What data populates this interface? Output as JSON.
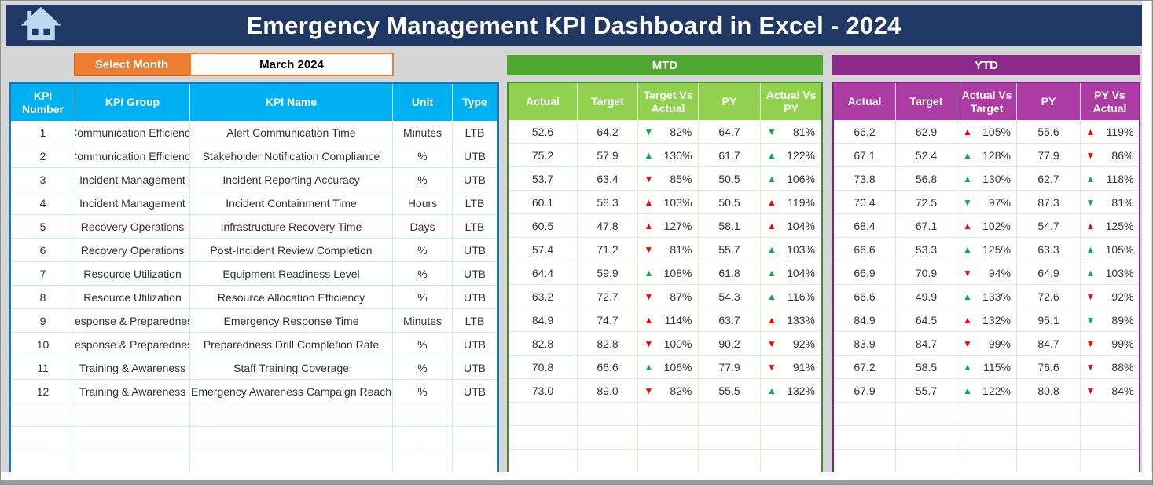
{
  "header": {
    "title": "Emergency Management KPI Dashboard in Excel - 2024"
  },
  "filter": {
    "button_label": "Select Month",
    "selected_month": "March 2024"
  },
  "colors": {
    "navy": "#1F3864",
    "accent_orange": "#ED7D31",
    "kpi_header_blue": "#00B0F0",
    "mtd_green": "#4EA72E",
    "mtd_header_green": "#92D050",
    "ytd_purple": "#8B2A8B",
    "ytd_header_purple": "#AC3BA4",
    "good_arrow": "#00B050",
    "bad_arrow": "#FF0000"
  },
  "kpi_table": {
    "headers": [
      "KPI Number",
      "KPI Group",
      "KPI Name",
      "Unit",
      "Type"
    ],
    "empty_row_count": 3,
    "rows": [
      {
        "number": "1",
        "group": "Communication Efficiency",
        "name": "Alert Communication Time",
        "unit": "Minutes",
        "type": "LTB"
      },
      {
        "number": "2",
        "group": "Communication Efficiency",
        "name": "Stakeholder Notification Compliance",
        "unit": "%",
        "type": "UTB"
      },
      {
        "number": "3",
        "group": "Incident Management",
        "name": "Incident Reporting Accuracy",
        "unit": "%",
        "type": "UTB"
      },
      {
        "number": "4",
        "group": "Incident Management",
        "name": "Incident Containment Time",
        "unit": "Hours",
        "type": "LTB"
      },
      {
        "number": "5",
        "group": "Recovery Operations",
        "name": "Infrastructure Recovery Time",
        "unit": "Days",
        "type": "LTB"
      },
      {
        "number": "6",
        "group": "Recovery Operations",
        "name": "Post-Incident Review Completion",
        "unit": "%",
        "type": "UTB"
      },
      {
        "number": "7",
        "group": "Resource Utilization",
        "name": "Equipment Readiness Level",
        "unit": "%",
        "type": "UTB"
      },
      {
        "number": "8",
        "group": "Resource Utilization",
        "name": "Resource Allocation Efficiency",
        "unit": "%",
        "type": "UTB"
      },
      {
        "number": "9",
        "group": "Response & Preparedness",
        "name": "Emergency Response Time",
        "unit": "Minutes",
        "type": "LTB"
      },
      {
        "number": "10",
        "group": "Response & Preparedness",
        "name": "Preparedness Drill Completion Rate",
        "unit": "%",
        "type": "UTB"
      },
      {
        "number": "11",
        "group": "Training & Awareness",
        "name": "Staff Training Coverage",
        "unit": "%",
        "type": "UTB"
      },
      {
        "number": "12",
        "group": "Training & Awareness",
        "name": "Emergency Awareness Campaign Reach",
        "unit": "%",
        "type": "UTB"
      }
    ]
  },
  "mtd": {
    "title": "MTD",
    "headers": [
      "Actual",
      "Target",
      "Target Vs Actual",
      "PY",
      "Actual Vs PY"
    ],
    "empty_row_count": 3,
    "rows": [
      {
        "actual": "52.6",
        "target": "64.2",
        "target_vs_actual": {
          "direction": "down",
          "color": "green",
          "value": "82%"
        },
        "py": "64.7",
        "actual_vs_py": {
          "direction": "down",
          "color": "green",
          "value": "81%"
        }
      },
      {
        "actual": "75.2",
        "target": "57.9",
        "target_vs_actual": {
          "direction": "up",
          "color": "green",
          "value": "130%"
        },
        "py": "61.7",
        "actual_vs_py": {
          "direction": "up",
          "color": "green",
          "value": "122%"
        }
      },
      {
        "actual": "53.7",
        "target": "63.4",
        "target_vs_actual": {
          "direction": "down",
          "color": "red",
          "value": "85%"
        },
        "py": "50.5",
        "actual_vs_py": {
          "direction": "up",
          "color": "green",
          "value": "106%"
        }
      },
      {
        "actual": "60.1",
        "target": "58.3",
        "target_vs_actual": {
          "direction": "up",
          "color": "red",
          "value": "103%"
        },
        "py": "50.5",
        "actual_vs_py": {
          "direction": "up",
          "color": "red",
          "value": "119%"
        }
      },
      {
        "actual": "60.5",
        "target": "47.8",
        "target_vs_actual": {
          "direction": "up",
          "color": "red",
          "value": "127%"
        },
        "py": "58.1",
        "actual_vs_py": {
          "direction": "up",
          "color": "red",
          "value": "104%"
        }
      },
      {
        "actual": "57.4",
        "target": "71.2",
        "target_vs_actual": {
          "direction": "down",
          "color": "red",
          "value": "81%"
        },
        "py": "55.7",
        "actual_vs_py": {
          "direction": "up",
          "color": "green",
          "value": "103%"
        }
      },
      {
        "actual": "64.4",
        "target": "59.9",
        "target_vs_actual": {
          "direction": "up",
          "color": "green",
          "value": "108%"
        },
        "py": "61.8",
        "actual_vs_py": {
          "direction": "up",
          "color": "green",
          "value": "104%"
        }
      },
      {
        "actual": "63.2",
        "target": "72.7",
        "target_vs_actual": {
          "direction": "down",
          "color": "red",
          "value": "87%"
        },
        "py": "54.3",
        "actual_vs_py": {
          "direction": "up",
          "color": "green",
          "value": "116%"
        }
      },
      {
        "actual": "84.9",
        "target": "74.7",
        "target_vs_actual": {
          "direction": "up",
          "color": "red",
          "value": "114%"
        },
        "py": "63.7",
        "actual_vs_py": {
          "direction": "up",
          "color": "red",
          "value": "133%"
        }
      },
      {
        "actual": "82.8",
        "target": "82.8",
        "target_vs_actual": {
          "direction": "down",
          "color": "red",
          "value": "100%"
        },
        "py": "90.2",
        "actual_vs_py": {
          "direction": "down",
          "color": "red",
          "value": "92%"
        }
      },
      {
        "actual": "70.8",
        "target": "66.6",
        "target_vs_actual": {
          "direction": "up",
          "color": "green",
          "value": "106%"
        },
        "py": "77.9",
        "actual_vs_py": {
          "direction": "down",
          "color": "red",
          "value": "91%"
        }
      },
      {
        "actual": "73.0",
        "target": "89.0",
        "target_vs_actual": {
          "direction": "down",
          "color": "red",
          "value": "82%"
        },
        "py": "55.5",
        "actual_vs_py": {
          "direction": "up",
          "color": "green",
          "value": "132%"
        }
      }
    ]
  },
  "ytd": {
    "title": "YTD",
    "headers": [
      "Actual",
      "Target",
      "Actual Vs Target",
      "PY",
      "PY Vs Actual"
    ],
    "empty_row_count": 3,
    "rows": [
      {
        "actual": "66.2",
        "target": "62.9",
        "actual_vs_target": {
          "direction": "up",
          "color": "red",
          "value": "105%"
        },
        "py": "55.6",
        "py_vs_actual": {
          "direction": "up",
          "color": "red",
          "value": "119%"
        }
      },
      {
        "actual": "67.1",
        "target": "52.4",
        "actual_vs_target": {
          "direction": "up",
          "color": "green",
          "value": "128%"
        },
        "py": "77.9",
        "py_vs_actual": {
          "direction": "down",
          "color": "red",
          "value": "86%"
        }
      },
      {
        "actual": "73.8",
        "target": "56.8",
        "actual_vs_target": {
          "direction": "up",
          "color": "green",
          "value": "130%"
        },
        "py": "62.7",
        "py_vs_actual": {
          "direction": "up",
          "color": "green",
          "value": "118%"
        }
      },
      {
        "actual": "70.4",
        "target": "72.5",
        "actual_vs_target": {
          "direction": "down",
          "color": "green",
          "value": "97%"
        },
        "py": "87.3",
        "py_vs_actual": {
          "direction": "down",
          "color": "green",
          "value": "81%"
        }
      },
      {
        "actual": "68.4",
        "target": "67.1",
        "actual_vs_target": {
          "direction": "up",
          "color": "red",
          "value": "102%"
        },
        "py": "54.7",
        "py_vs_actual": {
          "direction": "up",
          "color": "red",
          "value": "125%"
        }
      },
      {
        "actual": "66.6",
        "target": "53.3",
        "actual_vs_target": {
          "direction": "up",
          "color": "green",
          "value": "125%"
        },
        "py": "63.3",
        "py_vs_actual": {
          "direction": "up",
          "color": "green",
          "value": "105%"
        }
      },
      {
        "actual": "66.9",
        "target": "70.9",
        "actual_vs_target": {
          "direction": "down",
          "color": "red",
          "value": "94%"
        },
        "py": "64.9",
        "py_vs_actual": {
          "direction": "up",
          "color": "green",
          "value": "103%"
        }
      },
      {
        "actual": "66.6",
        "target": "49.9",
        "actual_vs_target": {
          "direction": "up",
          "color": "green",
          "value": "133%"
        },
        "py": "72.6",
        "py_vs_actual": {
          "direction": "down",
          "color": "red",
          "value": "92%"
        }
      },
      {
        "actual": "84.9",
        "target": "64.5",
        "actual_vs_target": {
          "direction": "up",
          "color": "red",
          "value": "132%"
        },
        "py": "95.1",
        "py_vs_actual": {
          "direction": "down",
          "color": "green",
          "value": "89%"
        }
      },
      {
        "actual": "83.9",
        "target": "84.7",
        "actual_vs_target": {
          "direction": "down",
          "color": "red",
          "value": "99%"
        },
        "py": "84.7",
        "py_vs_actual": {
          "direction": "down",
          "color": "red",
          "value": "99%"
        }
      },
      {
        "actual": "67.2",
        "target": "58.5",
        "actual_vs_target": {
          "direction": "up",
          "color": "green",
          "value": "115%"
        },
        "py": "76.6",
        "py_vs_actual": {
          "direction": "down",
          "color": "red",
          "value": "88%"
        }
      },
      {
        "actual": "67.9",
        "target": "55.7",
        "actual_vs_target": {
          "direction": "up",
          "color": "green",
          "value": "122%"
        },
        "py": "80.8",
        "py_vs_actual": {
          "direction": "down",
          "color": "red",
          "value": "84%"
        }
      }
    ]
  }
}
